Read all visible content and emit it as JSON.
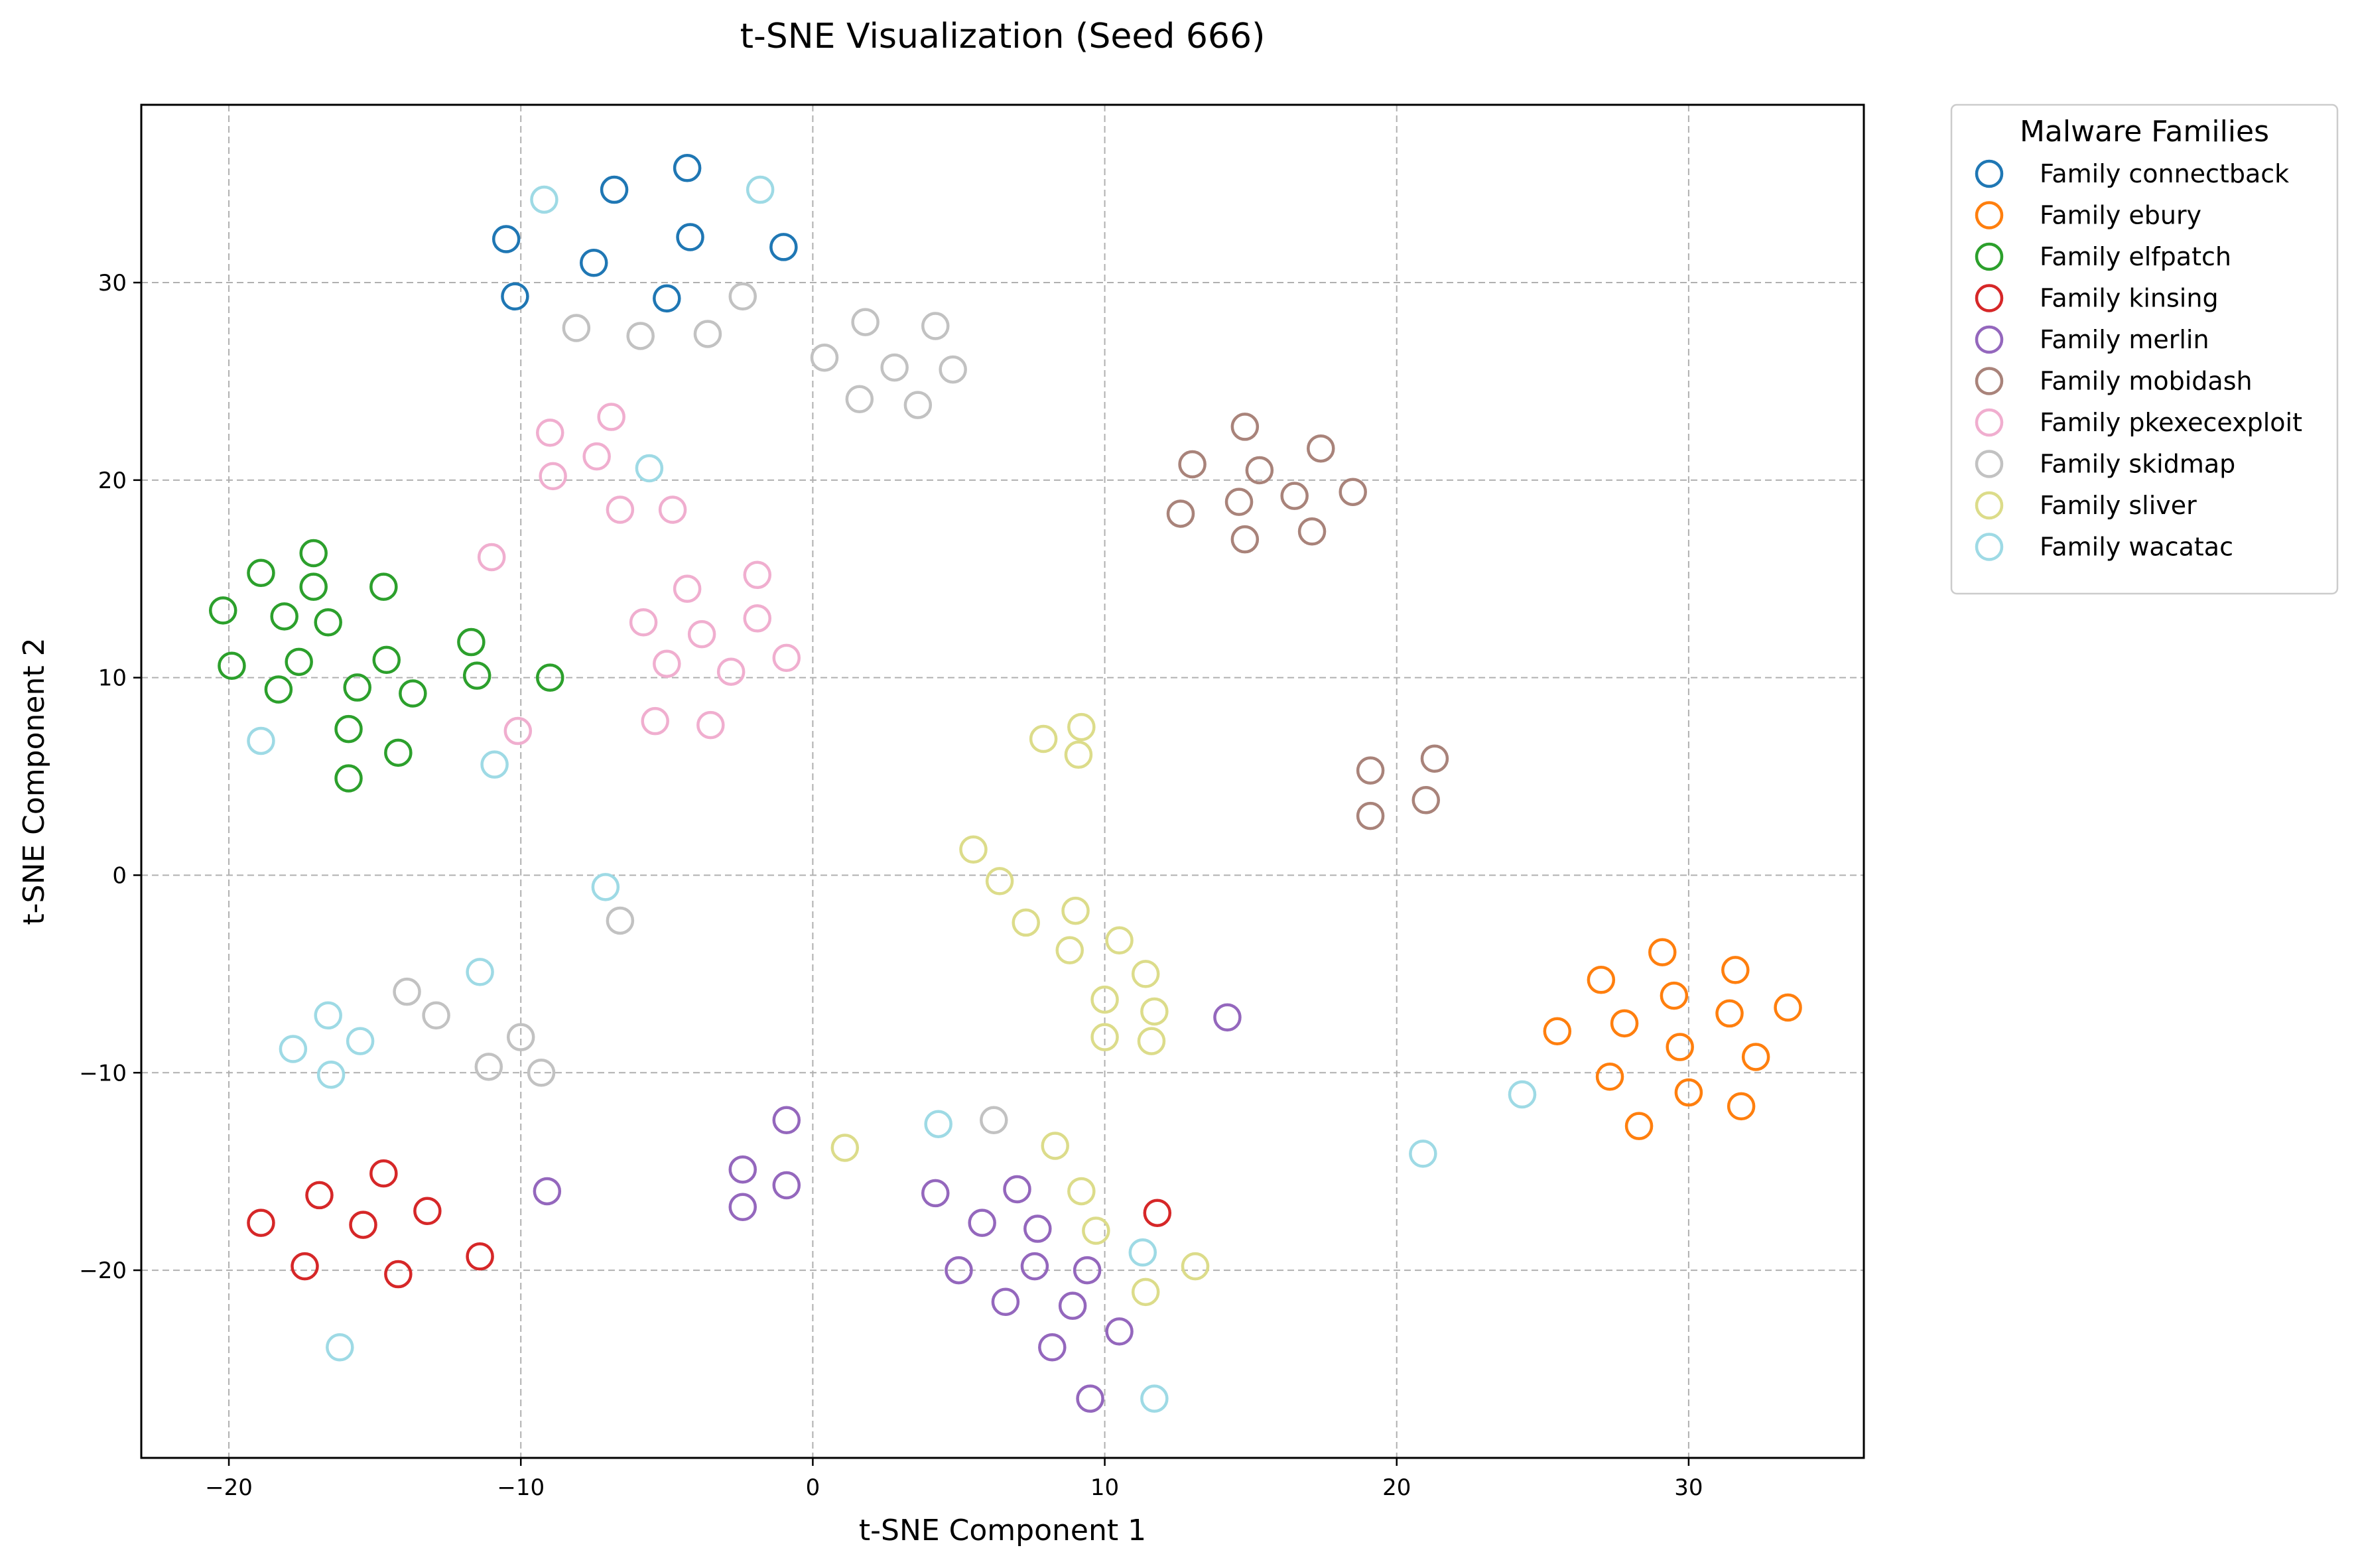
{
  "chart_data": {
    "type": "scatter",
    "title": "t-SNE Visualization (Seed 666)",
    "xlabel": "t-SNE Component 1",
    "ylabel": "t-SNE Component 2",
    "xlim": [
      -23,
      36
    ],
    "ylim": [
      -29.5,
      39
    ],
    "xticks": [
      -20,
      -10,
      0,
      10,
      20,
      30
    ],
    "yticks": [
      -20,
      -10,
      0,
      10,
      20,
      30
    ],
    "xtick_labels": [
      "−20",
      "−10",
      "0",
      "10",
      "20",
      "30"
    ],
    "ytick_labels": [
      "−20",
      "−10",
      "0",
      "10",
      "20",
      "30"
    ],
    "grid": true,
    "marker": "hollow-circle",
    "legend": {
      "title": "Malware Families",
      "placement": "outside-upper-right"
    },
    "series": [
      {
        "name": "Family connectback",
        "color": "#1f77b4",
        "points": [
          [
            -10.5,
            32.2
          ],
          [
            -6.8,
            34.7
          ],
          [
            -4.3,
            35.8
          ],
          [
            -1.0,
            31.8
          ],
          [
            -10.2,
            29.3
          ],
          [
            -7.5,
            31.0
          ],
          [
            -4.2,
            32.3
          ],
          [
            -5.0,
            29.2
          ]
        ]
      },
      {
        "name": "Family ebury",
        "color": "#ff7f0e",
        "points": [
          [
            29.1,
            -3.9
          ],
          [
            31.6,
            -4.8
          ],
          [
            27.0,
            -5.3
          ],
          [
            29.5,
            -6.1
          ],
          [
            33.4,
            -6.7
          ],
          [
            31.4,
            -7.0
          ],
          [
            27.8,
            -7.5
          ],
          [
            25.5,
            -7.9
          ],
          [
            29.7,
            -8.7
          ],
          [
            32.3,
            -9.2
          ],
          [
            27.3,
            -10.2
          ],
          [
            30.0,
            -11.0
          ],
          [
            28.3,
            -12.7
          ],
          [
            31.8,
            -11.7
          ]
        ]
      },
      {
        "name": "Family elfpatch",
        "color": "#2ca02c",
        "points": [
          [
            -20.2,
            13.4
          ],
          [
            -18.9,
            15.3
          ],
          [
            -17.1,
            16.3
          ],
          [
            -17.1,
            14.6
          ],
          [
            -14.7,
            14.6
          ],
          [
            -18.1,
            13.1
          ],
          [
            -16.6,
            12.8
          ],
          [
            -11.7,
            11.8
          ],
          [
            -19.9,
            10.6
          ],
          [
            -17.6,
            10.8
          ],
          [
            -14.6,
            10.9
          ],
          [
            -11.5,
            10.1
          ],
          [
            -9.0,
            10.0
          ],
          [
            -18.3,
            9.4
          ],
          [
            -15.6,
            9.5
          ],
          [
            -13.7,
            9.2
          ],
          [
            -15.9,
            7.4
          ],
          [
            -14.2,
            6.2
          ],
          [
            -15.9,
            4.9
          ]
        ]
      },
      {
        "name": "Family kinsing",
        "color": "#d62728",
        "points": [
          [
            -14.7,
            -15.1
          ],
          [
            -16.9,
            -16.2
          ],
          [
            -13.2,
            -17.0
          ],
          [
            -18.9,
            -17.6
          ],
          [
            -15.4,
            -17.7
          ],
          [
            -11.4,
            -19.3
          ],
          [
            -17.4,
            -19.8
          ],
          [
            -14.2,
            -20.2
          ],
          [
            11.8,
            -17.1
          ]
        ]
      },
      {
        "name": "Family merlin",
        "color": "#9467bd",
        "points": [
          [
            14.2,
            -7.2
          ],
          [
            -0.9,
            -12.4
          ],
          [
            -2.4,
            -14.9
          ],
          [
            -0.9,
            -15.7
          ],
          [
            -9.1,
            -16.0
          ],
          [
            -2.4,
            -16.8
          ],
          [
            7.0,
            -15.9
          ],
          [
            4.2,
            -16.1
          ],
          [
            5.8,
            -17.6
          ],
          [
            7.7,
            -17.9
          ],
          [
            5.0,
            -20.0
          ],
          [
            7.6,
            -19.8
          ],
          [
            9.4,
            -20.0
          ],
          [
            6.6,
            -21.6
          ],
          [
            8.9,
            -21.8
          ],
          [
            10.5,
            -23.1
          ],
          [
            8.2,
            -23.9
          ],
          [
            9.5,
            -26.5
          ]
        ]
      },
      {
        "name": "Family mobidash",
        "color": "#a9837a",
        "points": [
          [
            14.8,
            22.7
          ],
          [
            17.4,
            21.6
          ],
          [
            13.0,
            20.8
          ],
          [
            15.3,
            20.5
          ],
          [
            18.5,
            19.4
          ],
          [
            16.5,
            19.2
          ],
          [
            14.6,
            18.9
          ],
          [
            12.6,
            18.3
          ],
          [
            17.1,
            17.4
          ],
          [
            14.8,
            17.0
          ],
          [
            21.3,
            5.9
          ],
          [
            19.1,
            5.3
          ],
          [
            21.0,
            3.8
          ],
          [
            19.1,
            3.0
          ]
        ]
      },
      {
        "name": "Family pkexecexploit",
        "color": "#f0aecf",
        "points": [
          [
            -6.9,
            23.2
          ],
          [
            -9.0,
            22.4
          ],
          [
            -7.4,
            21.2
          ],
          [
            -8.9,
            20.2
          ],
          [
            -6.6,
            18.5
          ],
          [
            -4.8,
            18.5
          ],
          [
            -11.0,
            16.1
          ],
          [
            -1.9,
            15.2
          ],
          [
            -4.3,
            14.5
          ],
          [
            -5.8,
            12.8
          ],
          [
            -1.9,
            13.0
          ],
          [
            -3.8,
            12.2
          ],
          [
            -5.0,
            10.7
          ],
          [
            -2.8,
            10.3
          ],
          [
            -0.9,
            11.0
          ],
          [
            -5.4,
            7.8
          ],
          [
            -3.5,
            7.6
          ],
          [
            -10.1,
            7.3
          ]
        ]
      },
      {
        "name": "Family skidmap",
        "color": "#c2c2c2",
        "points": [
          [
            -8.1,
            27.7
          ],
          [
            -5.9,
            27.3
          ],
          [
            -3.6,
            27.4
          ],
          [
            -2.4,
            29.3
          ],
          [
            1.8,
            28.0
          ],
          [
            4.2,
            27.8
          ],
          [
            0.4,
            26.2
          ],
          [
            2.8,
            25.7
          ],
          [
            4.8,
            25.6
          ],
          [
            1.6,
            24.1
          ],
          [
            3.6,
            23.8
          ],
          [
            -6.6,
            -2.3
          ],
          [
            -13.9,
            -5.9
          ],
          [
            -12.9,
            -7.1
          ],
          [
            -10.0,
            -8.2
          ],
          [
            -11.1,
            -9.7
          ],
          [
            -9.3,
            -10.0
          ],
          [
            6.2,
            -12.4
          ]
        ]
      },
      {
        "name": "Family sliver",
        "color": "#dcdc8a",
        "points": [
          [
            7.9,
            6.9
          ],
          [
            9.2,
            7.5
          ],
          [
            9.1,
            6.1
          ],
          [
            5.5,
            1.3
          ],
          [
            6.4,
            -0.3
          ],
          [
            7.3,
            -2.4
          ],
          [
            9.0,
            -1.8
          ],
          [
            10.5,
            -3.3
          ],
          [
            8.8,
            -3.8
          ],
          [
            11.4,
            -5.0
          ],
          [
            10.0,
            -6.3
          ],
          [
            11.7,
            -6.9
          ],
          [
            10.0,
            -8.2
          ],
          [
            11.6,
            -8.4
          ],
          [
            1.1,
            -13.8
          ],
          [
            8.3,
            -13.7
          ],
          [
            9.2,
            -16.0
          ],
          [
            9.7,
            -18.0
          ],
          [
            11.4,
            -21.1
          ],
          [
            13.1,
            -19.8
          ]
        ]
      },
      {
        "name": "Family wacatac",
        "color": "#9edae5",
        "points": [
          [
            -9.2,
            34.2
          ],
          [
            -1.8,
            34.7
          ],
          [
            -5.6,
            20.6
          ],
          [
            -18.9,
            6.8
          ],
          [
            -10.9,
            5.6
          ],
          [
            -7.1,
            -0.6
          ],
          [
            -11.4,
            -4.9
          ],
          [
            -16.6,
            -7.1
          ],
          [
            -15.5,
            -8.4
          ],
          [
            -17.8,
            -8.8
          ],
          [
            -16.5,
            -10.1
          ],
          [
            4.3,
            -12.6
          ],
          [
            24.3,
            -11.1
          ],
          [
            20.9,
            -14.1
          ],
          [
            11.3,
            -19.1
          ],
          [
            -16.2,
            -23.9
          ],
          [
            11.7,
            -26.5
          ]
        ]
      }
    ]
  }
}
